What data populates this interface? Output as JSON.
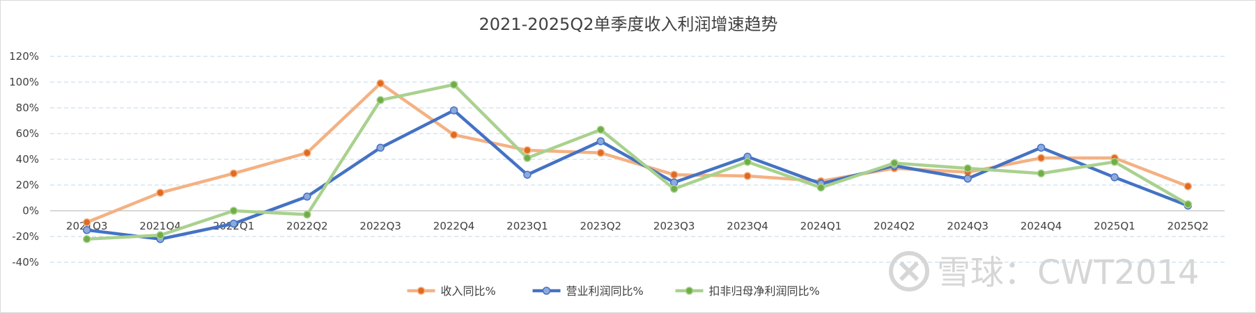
{
  "chart_data": {
    "type": "line",
    "title": "2021-2025Q2单季度收入利润增速趋势",
    "categories": [
      "2021Q3",
      "2021Q4",
      "2022Q1",
      "2022Q2",
      "2022Q3",
      "2022Q4",
      "2023Q1",
      "2023Q2",
      "2023Q3",
      "2023Q4",
      "2024Q1",
      "2024Q2",
      "2024Q3",
      "2024Q4",
      "2025Q1",
      "2025Q2"
    ],
    "ylim": [
      -40,
      120
    ],
    "yticks": [
      "-40%",
      "-20%",
      "0%",
      "20%",
      "40%",
      "60%",
      "80%",
      "100%",
      "120%"
    ],
    "grid": true,
    "legend_position": "bottom",
    "series": [
      {
        "name": "收入同比%",
        "color": "#f4b183",
        "marker": "#e06a1f",
        "values": [
          -9,
          14,
          29,
          45,
          99,
          59,
          47,
          45,
          28,
          27,
          23,
          33,
          30,
          41,
          41,
          19
        ]
      },
      {
        "name": "营业利润同比%",
        "color": "#4472c4",
        "marker": "#8eaadb",
        "values": [
          -15,
          -22,
          -10,
          11,
          49,
          78,
          28,
          54,
          22,
          42,
          21,
          35,
          25,
          49,
          26,
          4
        ]
      },
      {
        "name": "扣非归母净利润同比%",
        "color": "#a9d18e",
        "marker": "#70ad47",
        "values": [
          -22,
          -19,
          0,
          -3,
          86,
          98,
          41,
          63,
          17,
          38,
          18,
          37,
          33,
          29,
          38,
          5
        ]
      }
    ]
  },
  "watermark": "雪球：CWT2014",
  "watermark_icon": "snowball-logo-icon"
}
